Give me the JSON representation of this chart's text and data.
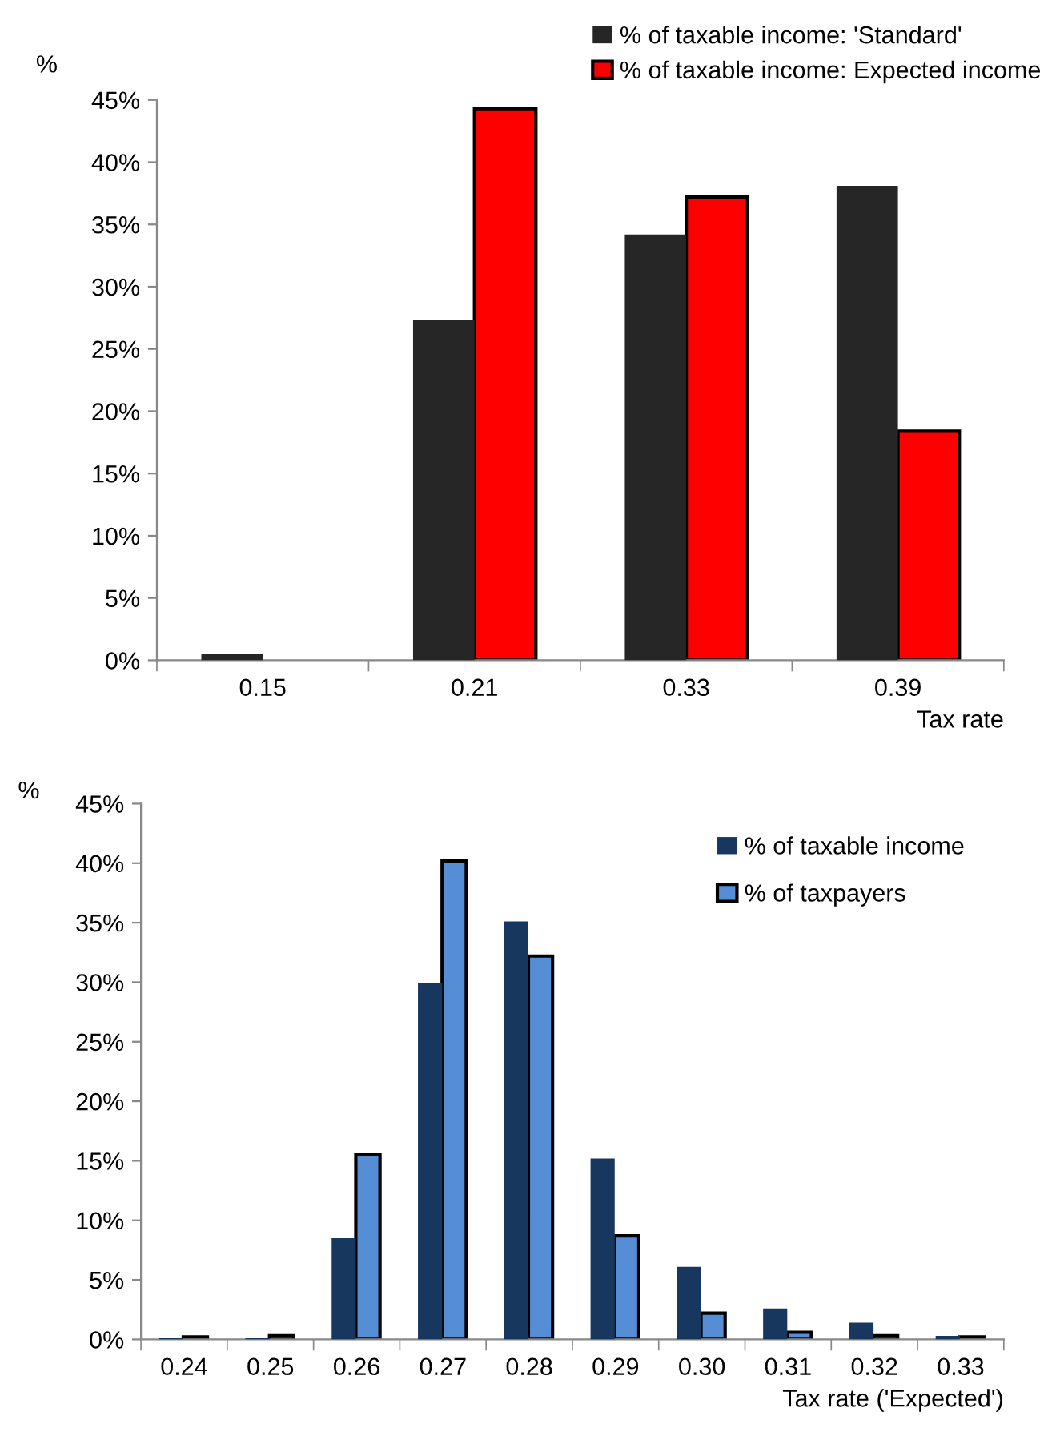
{
  "chart_data": [
    {
      "type": "bar",
      "ylabel": "%",
      "xlabel": "Tax rate",
      "categories": [
        "0.15",
        "0.21",
        "0.33",
        "0.39"
      ],
      "series": [
        {
          "name": "% of taxable income: 'Standard'",
          "color": "#262626",
          "values": [
            0.5,
            27.3,
            34.2,
            38.1
          ]
        },
        {
          "name": "% of taxable income: Expected income",
          "color": "#ff0000",
          "values": [
            null,
            44.3,
            37.2,
            18.4
          ]
        }
      ],
      "ylim": [
        0,
        45
      ],
      "yticks": [
        {
          "value": 0,
          "label": "0%"
        },
        {
          "value": 5,
          "label": "5%"
        },
        {
          "value": 10,
          "label": "10%"
        },
        {
          "value": 15,
          "label": "15%"
        },
        {
          "value": 20,
          "label": "20%"
        },
        {
          "value": 25,
          "label": "25%"
        },
        {
          "value": 30,
          "label": "30%"
        },
        {
          "value": 35,
          "label": "35%"
        },
        {
          "value": 40,
          "label": "40%"
        },
        {
          "value": 45,
          "label": "45%"
        }
      ],
      "grid": false,
      "legend": "top right"
    },
    {
      "type": "bar",
      "ylabel": "%",
      "xlabel": "Tax rate ('Expected')",
      "categories": [
        "0.24",
        "0.25",
        "0.26",
        "0.27",
        "0.28",
        "0.29",
        "0.30",
        "0.31",
        "0.32",
        "0.33"
      ],
      "series": [
        {
          "name": "% of taxable income",
          "color": "#17375e",
          "values": [
            0.1,
            0.1,
            8.5,
            29.9,
            35.1,
            15.2,
            6.1,
            2.6,
            1.4,
            0.3
          ]
        },
        {
          "name": "% of taxpayers",
          "color": "#558ed5",
          "values": [
            0.2,
            0.3,
            15.5,
            40.2,
            32.2,
            8.7,
            2.2,
            0.6,
            0.3,
            0.2
          ]
        }
      ],
      "ylim": [
        0,
        45
      ],
      "yticks": [
        {
          "value": 0,
          "label": "0%"
        },
        {
          "value": 5,
          "label": "5%"
        },
        {
          "value": 10,
          "label": "10%"
        },
        {
          "value": 15,
          "label": "15%"
        },
        {
          "value": 20,
          "label": "20%"
        },
        {
          "value": 25,
          "label": "25%"
        },
        {
          "value": 30,
          "label": "30%"
        },
        {
          "value": 35,
          "label": "35%"
        },
        {
          "value": 40,
          "label": "40%"
        },
        {
          "value": 45,
          "label": "45%"
        }
      ],
      "grid": false,
      "legend": "top right"
    }
  ]
}
